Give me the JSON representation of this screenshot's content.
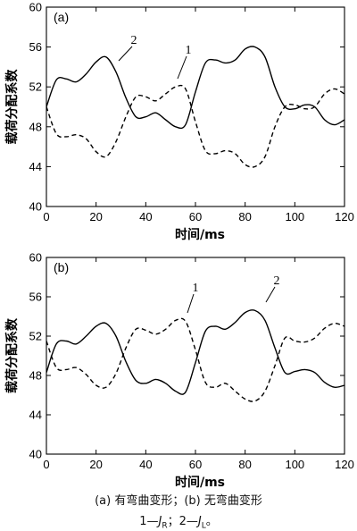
{
  "chart_data": [
    {
      "type": "line",
      "panel_label": "(a)",
      "xlabel": "时间/ms",
      "ylabel": "载荷分配系数",
      "xlim": [
        0,
        120
      ],
      "ylim": [
        40,
        60
      ],
      "xticks": [
        0,
        20,
        40,
        60,
        80,
        100,
        120
      ],
      "yticks": [
        40,
        44,
        48,
        52,
        56,
        60
      ],
      "grid": false,
      "series": [
        {
          "name": "1",
          "style": "dashed",
          "x": [
            0,
            4,
            8,
            12,
            16,
            20,
            24,
            28,
            32,
            36,
            40,
            44,
            48,
            52,
            56,
            60,
            64,
            68,
            72,
            76,
            80,
            84,
            88,
            92,
            96,
            100,
            104,
            108,
            112,
            116,
            120
          ],
          "y": [
            50.0,
            47.3,
            47.0,
            47.2,
            46.8,
            45.5,
            45.0,
            46.5,
            49.0,
            51.0,
            51.0,
            50.6,
            51.3,
            52.0,
            51.8,
            48.5,
            45.6,
            45.3,
            45.6,
            45.3,
            44.2,
            44.0,
            45.0,
            48.0,
            50.0,
            50.2,
            49.8,
            50.0,
            51.3,
            51.8,
            51.3
          ]
        },
        {
          "name": "2",
          "style": "solid",
          "x": [
            0,
            4,
            8,
            12,
            16,
            20,
            24,
            28,
            32,
            36,
            40,
            44,
            48,
            52,
            56,
            60,
            64,
            68,
            72,
            76,
            80,
            84,
            88,
            92,
            96,
            100,
            104,
            108,
            112,
            116,
            120
          ],
          "y": [
            50.0,
            52.7,
            52.8,
            52.5,
            53.3,
            54.5,
            55.0,
            53.5,
            50.9,
            49.0,
            49.0,
            49.4,
            48.7,
            48.0,
            48.2,
            51.5,
            54.4,
            54.7,
            54.4,
            54.7,
            55.8,
            56.0,
            55.0,
            52.0,
            50.0,
            49.8,
            50.2,
            50.0,
            48.7,
            48.2,
            48.7
          ]
        }
      ],
      "annotations": [
        "1",
        "2"
      ]
    },
    {
      "type": "line",
      "panel_label": "(b)",
      "xlabel": "时间/ms",
      "ylabel": "载荷分配系数",
      "xlim": [
        0,
        120
      ],
      "ylim": [
        40,
        60
      ],
      "xticks": [
        0,
        20,
        40,
        60,
        80,
        100,
        120
      ],
      "yticks": [
        40,
        44,
        48,
        52,
        56,
        60
      ],
      "grid": false,
      "series": [
        {
          "name": "1",
          "style": "dashed",
          "x": [
            0,
            4,
            8,
            12,
            16,
            20,
            24,
            28,
            32,
            36,
            40,
            44,
            48,
            52,
            56,
            60,
            64,
            68,
            72,
            76,
            80,
            84,
            88,
            92,
            96,
            100,
            104,
            108,
            112,
            116,
            120
          ],
          "y": [
            51.5,
            48.8,
            48.6,
            48.8,
            48.1,
            47.0,
            46.8,
            48.2,
            50.8,
            52.7,
            52.6,
            52.2,
            52.7,
            53.6,
            53.5,
            50.6,
            47.3,
            46.8,
            47.2,
            46.4,
            45.6,
            45.4,
            46.4,
            49.0,
            51.8,
            51.5,
            51.4,
            51.8,
            52.8,
            53.3,
            53.0
          ]
        },
        {
          "name": "2",
          "style": "solid",
          "x": [
            0,
            4,
            8,
            12,
            16,
            20,
            24,
            28,
            32,
            36,
            40,
            44,
            48,
            52,
            56,
            60,
            64,
            68,
            72,
            76,
            80,
            84,
            88,
            92,
            96,
            100,
            104,
            108,
            112,
            116,
            120
          ],
          "y": [
            48.3,
            51.2,
            51.5,
            51.2,
            52.0,
            53.0,
            53.3,
            52.0,
            49.4,
            47.5,
            47.2,
            47.6,
            47.2,
            46.4,
            46.3,
            49.3,
            52.5,
            53.0,
            52.7,
            53.4,
            54.4,
            54.6,
            53.6,
            50.8,
            48.3,
            48.4,
            48.6,
            48.3,
            47.3,
            46.8,
            47.0
          ]
        }
      ],
      "annotations": [
        "1",
        "2"
      ]
    }
  ],
  "caption_line1": "(a)  有弯曲变形；(b)  无弯曲变形",
  "caption_line2": {
    "prefix": "1—",
    "s1": "J",
    "s1_sub": "R",
    "sep": "；2—",
    "s2": "J",
    "s2_sub": "L",
    "end": "。"
  }
}
